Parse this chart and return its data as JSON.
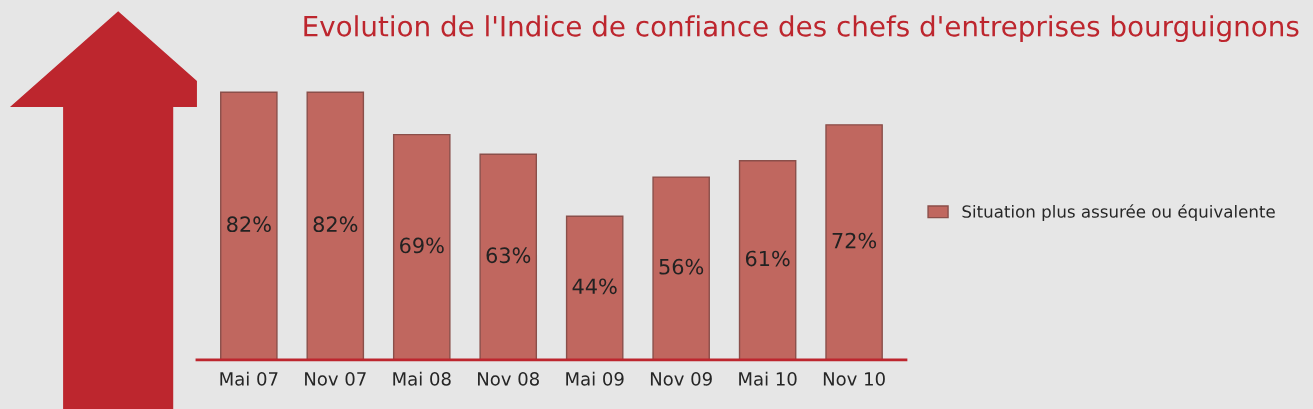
{
  "chart_data": {
    "type": "bar",
    "title": "Evolution de l'Indice de confiance des chefs d'entreprises bourguignons",
    "categories": [
      "Mai 07",
      "Nov 07",
      "Mai 08",
      "Nov 08",
      "Mai 09",
      "Nov 09",
      "Mai 10",
      "Nov 10"
    ],
    "series": [
      {
        "name": "Situation plus assurée ou équivalente",
        "color": "#c0675f",
        "values": [
          82,
          82,
          69,
          63,
          44,
          56,
          61,
          72
        ],
        "value_labels": [
          "82%",
          "82%",
          "69%",
          "63%",
          "44%",
          "56%",
          "61%",
          "72%"
        ]
      }
    ],
    "legend": "right",
    "grid": false
  }
}
